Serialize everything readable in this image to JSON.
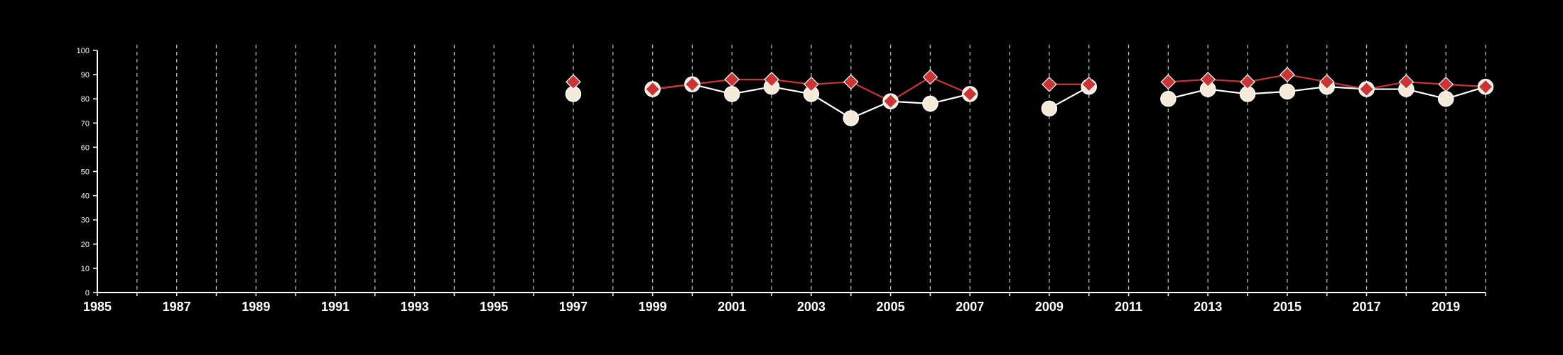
{
  "chart_data": {
    "type": "line",
    "title": "",
    "xlabel": "",
    "ylabel": "",
    "xlim": [
      1985,
      2020
    ],
    "ylim": [
      0,
      100
    ],
    "x_ticks": [
      1985,
      1987,
      1989,
      1991,
      1993,
      1995,
      1997,
      1999,
      2001,
      2003,
      2005,
      2007,
      2009,
      2011,
      2013,
      2015,
      2017,
      2019
    ],
    "y_ticks": [
      0,
      10,
      20,
      30,
      40,
      50,
      60,
      70,
      80,
      90,
      100
    ],
    "grid": {
      "vertical_dashed_each_year": true,
      "horizontal": false
    },
    "legend": "none",
    "background": "#000000",
    "axis_color": "#ffffff",
    "grid_color": "#bbbbbb",
    "series": [
      {
        "marker": "circle",
        "color": "#ffffff",
        "marker_fill": "#f5ead8",
        "points": [
          [
            1997,
            82
          ],
          [
            1999,
            84
          ],
          [
            2000,
            86
          ],
          [
            2001,
            82
          ],
          [
            2002,
            85
          ],
          [
            2003,
            82
          ],
          [
            2004,
            72
          ],
          [
            2005,
            79
          ],
          [
            2006,
            78
          ],
          [
            2007,
            82
          ],
          [
            2009,
            76
          ],
          [
            2010,
            85
          ],
          [
            2012,
            80
          ],
          [
            2013,
            84
          ],
          [
            2014,
            82
          ],
          [
            2015,
            83
          ],
          [
            2016,
            85
          ],
          [
            2017,
            84
          ],
          [
            2018,
            84
          ],
          [
            2019,
            80
          ],
          [
            2020,
            85
          ]
        ]
      },
      {
        "marker": "diamond",
        "color": "#cc3333",
        "marker_fill": "#cc3333",
        "points": [
          [
            1997,
            87
          ],
          [
            1999,
            84
          ],
          [
            2000,
            86
          ],
          [
            2001,
            88
          ],
          [
            2002,
            88
          ],
          [
            2003,
            86
          ],
          [
            2004,
            87
          ],
          [
            2005,
            79
          ],
          [
            2006,
            89
          ],
          [
            2007,
            82
          ],
          [
            2009,
            86
          ],
          [
            2010,
            86
          ],
          [
            2012,
            87
          ],
          [
            2013,
            88
          ],
          [
            2014,
            87
          ],
          [
            2015,
            90
          ],
          [
            2016,
            87
          ],
          [
            2017,
            84
          ],
          [
            2018,
            87
          ],
          [
            2019,
            86
          ],
          [
            2020,
            85
          ]
        ]
      }
    ]
  }
}
